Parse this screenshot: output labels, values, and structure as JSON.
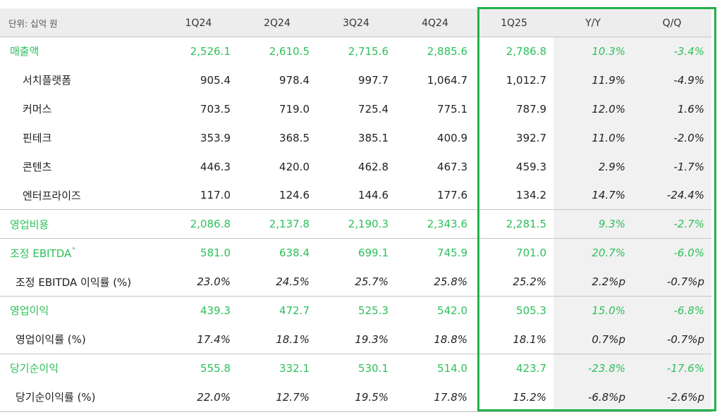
{
  "header": {
    "unit": "단위: 십억 원",
    "columns": [
      "1Q24",
      "2Q24",
      "3Q24",
      "4Q24",
      "1Q25",
      "Y/Y",
      "Q/Q"
    ]
  },
  "rows": [
    {
      "label": "매출액",
      "values": [
        "2,526.1",
        "2,610.5",
        "2,715.6",
        "2,885.6",
        "2,786.8",
        "10.3%",
        "-3.4%"
      ]
    },
    {
      "label": "서치플랫폼",
      "values": [
        "905.4",
        "978.4",
        "997.7",
        "1,064.7",
        "1,012.7",
        "11.9%",
        "-4.9%"
      ]
    },
    {
      "label": "커머스",
      "values": [
        "703.5",
        "719.0",
        "725.4",
        "775.1",
        "787.9",
        "12.0%",
        "1.6%"
      ]
    },
    {
      "label": "핀테크",
      "values": [
        "353.9",
        "368.5",
        "385.1",
        "400.9",
        "392.7",
        "11.0%",
        "-2.0%"
      ]
    },
    {
      "label": "콘텐츠",
      "values": [
        "446.3",
        "420.0",
        "462.8",
        "467.3",
        "459.3",
        "2.9%",
        "-1.7%"
      ]
    },
    {
      "label": "엔터프라이즈",
      "values": [
        "117.0",
        "124.6",
        "144.6",
        "177.6",
        "134.2",
        "14.7%",
        "-24.4%"
      ]
    },
    {
      "label": "영업비용",
      "values": [
        "2,086.8",
        "2,137.8",
        "2,190.3",
        "2,343.6",
        "2,281.5",
        "9.3%",
        "-2.7%"
      ]
    },
    {
      "label": "조정 EBITDA",
      "sup": "*",
      "values": [
        "581.0",
        "638.4",
        "699.1",
        "745.9",
        "701.0",
        "20.7%",
        "-6.0%"
      ]
    },
    {
      "label": "조정 EBITDA 이익률 (%)",
      "values": [
        "23.0%",
        "24.5%",
        "25.7%",
        "25.8%",
        "25.2%",
        "2.2%p",
        "-0.7%p"
      ]
    },
    {
      "label": "영업이익",
      "values": [
        "439.3",
        "472.7",
        "525.3",
        "542.0",
        "505.3",
        "15.0%",
        "-6.8%"
      ]
    },
    {
      "label": "영업이익률 (%)",
      "values": [
        "17.4%",
        "18.1%",
        "19.3%",
        "18.8%",
        "18.1%",
        "0.7%p",
        "-0.7%p"
      ]
    },
    {
      "label": "당기순이익",
      "values": [
        "555.8",
        "332.1",
        "530.1",
        "514.0",
        "423.7",
        "-23.8%",
        "-17.6%"
      ]
    },
    {
      "label": "당기순이익률 (%)",
      "values": [
        "22.0%",
        "12.7%",
        "19.5%",
        "17.8%",
        "15.2%",
        "-6.8%p",
        "-2.6%p"
      ]
    }
  ],
  "colors": {
    "accent_green": "#2ec05a",
    "highlight_border": "#21b14a",
    "header_bg": "#ededed"
  }
}
